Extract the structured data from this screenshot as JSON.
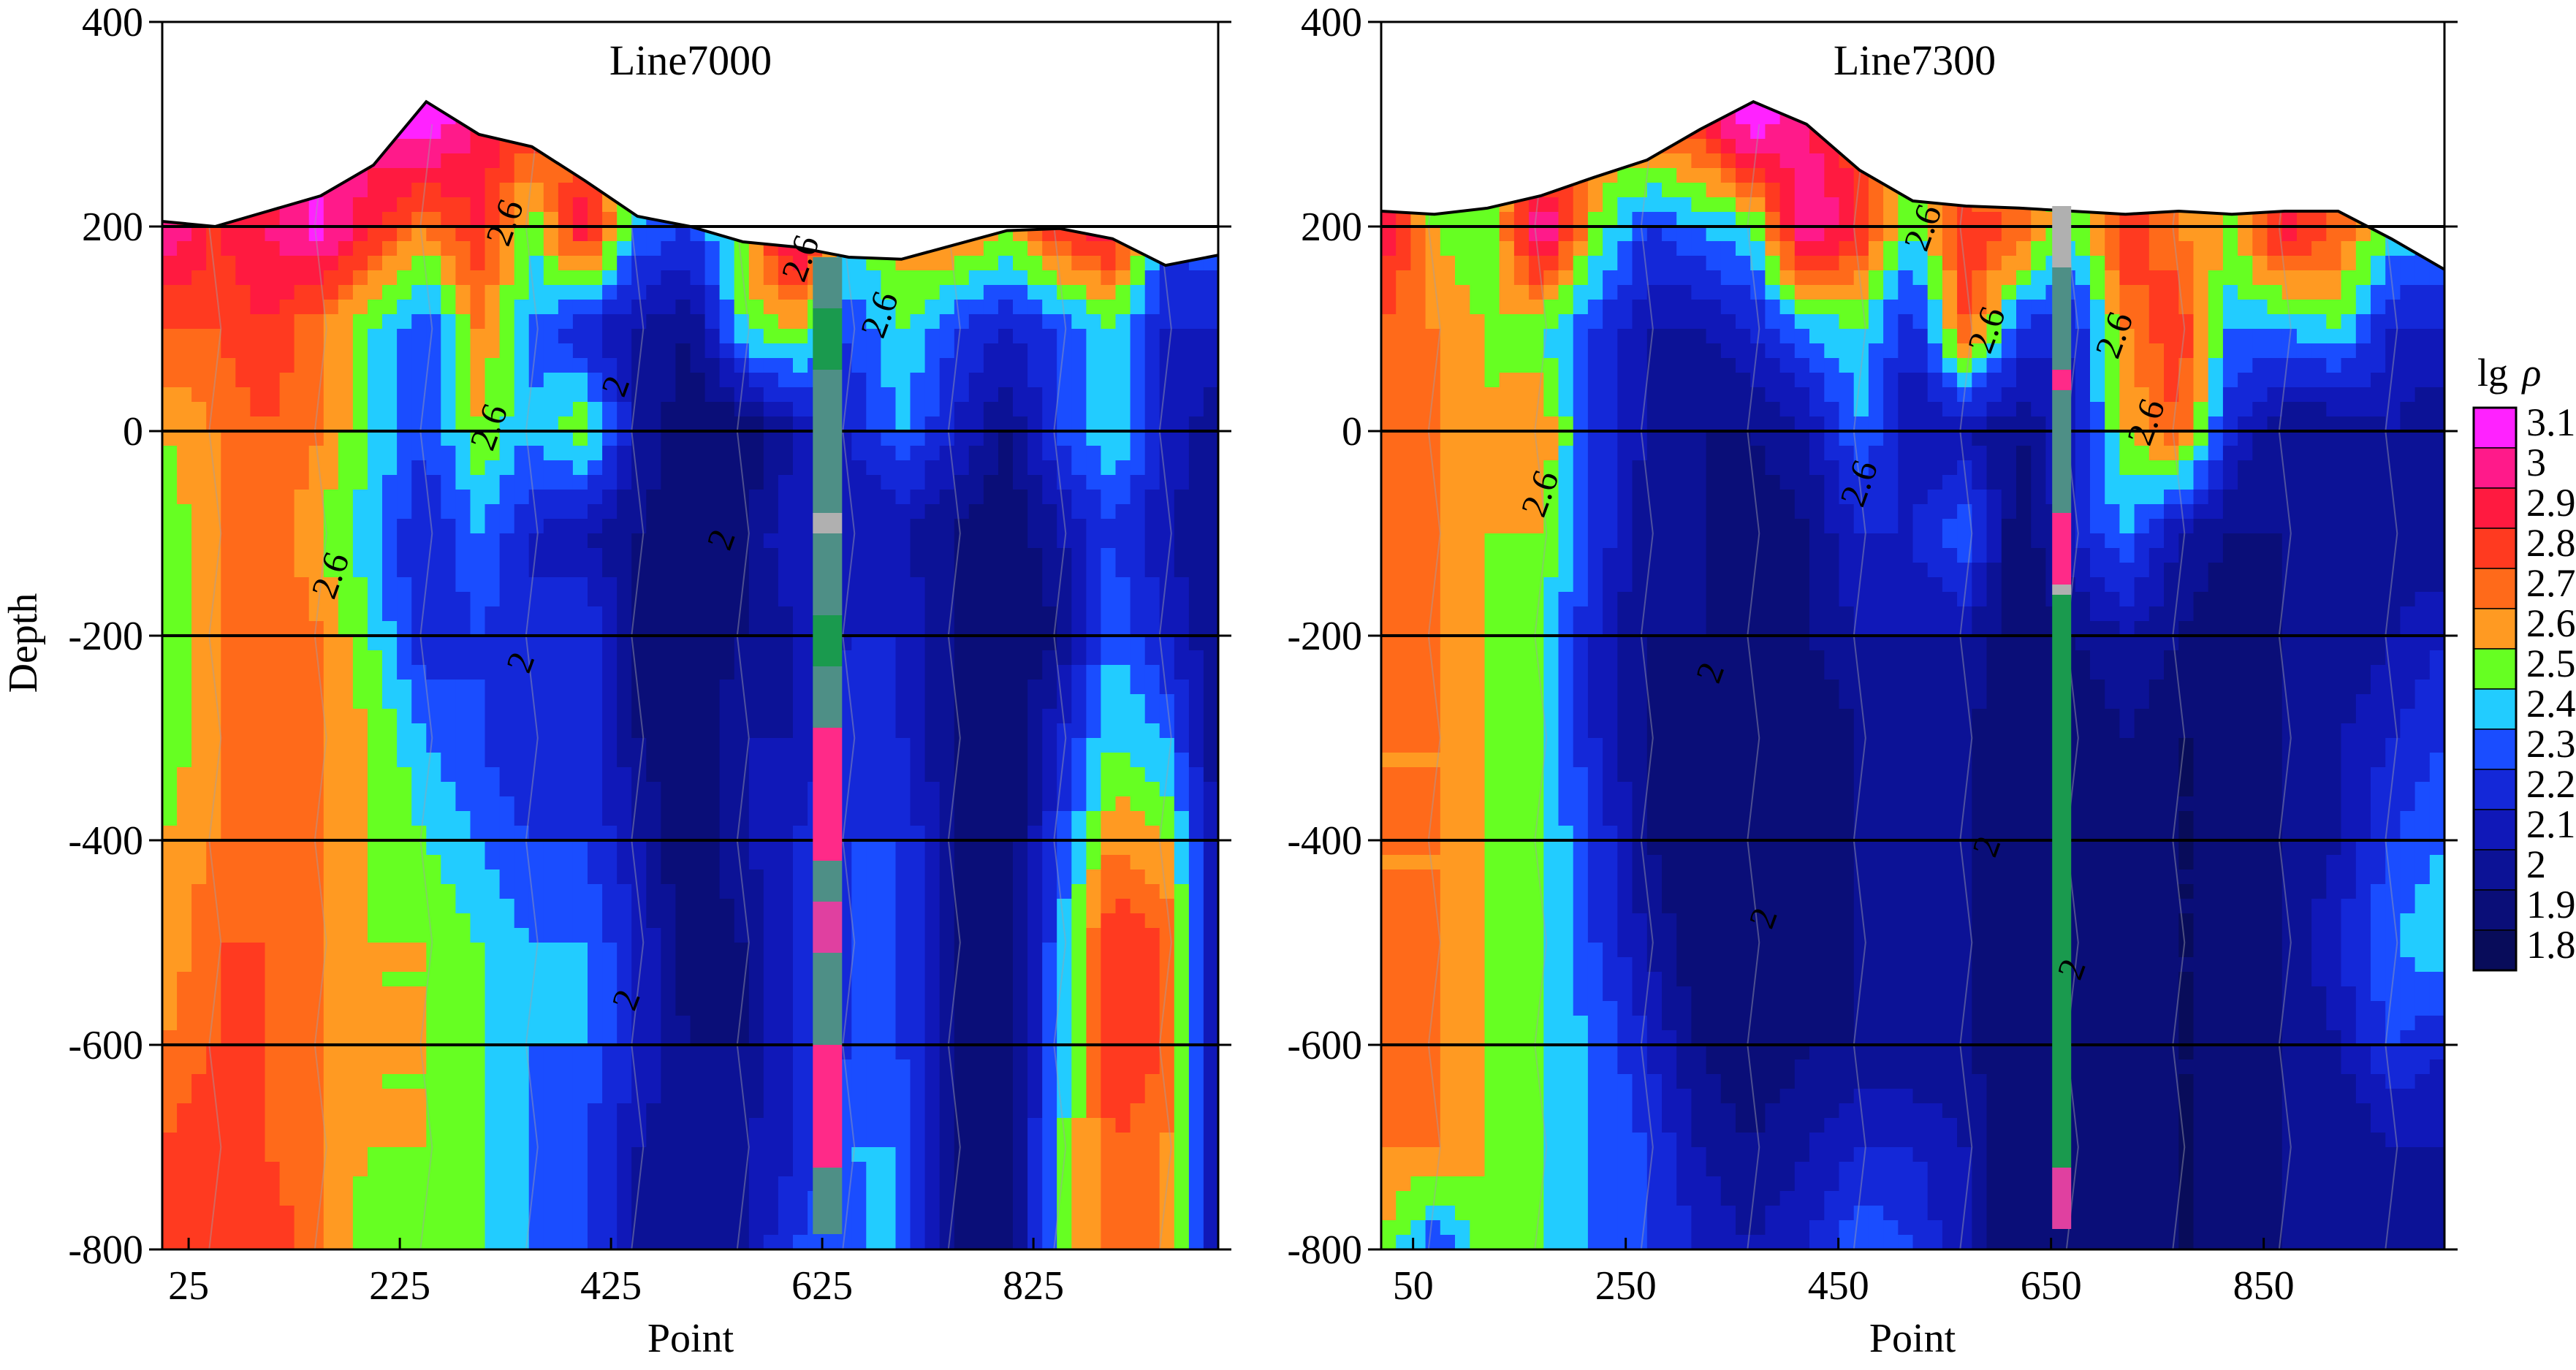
{
  "chart_data": [
    {
      "type": "heatmap",
      "title": "Line7000",
      "xlabel": "Point",
      "ylabel": "Depth",
      "xlim": [
        0,
        1000
      ],
      "ylim": [
        -800,
        400
      ],
      "x_ticks": [
        "25",
        "225",
        "425",
        "625",
        "825"
      ],
      "x_tick_values": [
        25,
        225,
        425,
        625,
        825
      ],
      "y_ticks": [
        "400",
        "200",
        "0",
        "-200",
        "-400",
        "-600",
        "-800"
      ],
      "y_tick_values": [
        400,
        200,
        0,
        -200,
        -400,
        -600,
        -800
      ],
      "grid_lines_y": [
        200,
        0,
        -200,
        -400,
        -600
      ],
      "topography": [
        [
          0,
          205
        ],
        [
          50,
          200
        ],
        [
          100,
          215
        ],
        [
          150,
          230
        ],
        [
          200,
          260
        ],
        [
          250,
          322
        ],
        [
          300,
          290
        ],
        [
          350,
          278
        ],
        [
          400,
          245
        ],
        [
          450,
          210
        ],
        [
          500,
          200
        ],
        [
          550,
          185
        ],
        [
          600,
          180
        ],
        [
          650,
          170
        ],
        [
          700,
          168
        ],
        [
          750,
          182
        ],
        [
          800,
          196
        ],
        [
          850,
          198
        ],
        [
          900,
          188
        ],
        [
          950,
          162
        ],
        [
          1000,
          172
        ]
      ],
      "borehole_x": 630,
      "borehole_depth_range": [
        -785,
        170
      ],
      "contour_labels": [
        {
          "text": "2.6",
          "x": 335,
          "y": 200
        },
        {
          "text": "2.6",
          "x": 615,
          "y": 165
        },
        {
          "text": "2.6",
          "x": 690,
          "y": 110
        },
        {
          "text": "2.6",
          "x": 320,
          "y": 0
        },
        {
          "text": "2.6",
          "x": 170,
          "y": -145
        },
        {
          "text": "2",
          "x": 440,
          "y": 40
        },
        {
          "text": "2",
          "x": 540,
          "y": -110
        },
        {
          "text": "2",
          "x": 350,
          "y": -230
        },
        {
          "text": "2",
          "x": 450,
          "y": -560
        }
      ],
      "z_grid": {
        "x": [
          0,
          50,
          100,
          150,
          200,
          250,
          300,
          350,
          400,
          450,
          500,
          550,
          600,
          650,
          700,
          750,
          800,
          850,
          900,
          950,
          1000
        ],
        "depth": [
          300,
          200,
          100,
          0,
          -100,
          -200,
          -300,
          -400,
          -500,
          -600,
          -700,
          -800
        ],
        "values": [
          [
            2.5,
            2.6,
            2.8,
            3.0,
            3.1,
            3.2,
            3.0,
            2.9,
            2.7,
            2.5,
            2.4,
            2.4,
            2.6,
            2.6,
            2.5,
            2.5,
            2.6,
            2.8,
            2.7,
            2.4,
            2.3
          ],
          [
            3.1,
            2.9,
            3.0,
            3.15,
            2.9,
            2.7,
            2.9,
            2.5,
            3.0,
            2.4,
            2.3,
            2.6,
            3.15,
            2.5,
            2.7,
            2.8,
            2.6,
            2.9,
            3.0,
            2.3,
            2.4
          ],
          [
            2.8,
            2.8,
            2.9,
            2.7,
            2.5,
            2.3,
            2.7,
            2.4,
            2.2,
            2.1,
            2.0,
            2.5,
            2.6,
            2.3,
            2.5,
            2.3,
            2.2,
            2.3,
            2.5,
            2.2,
            2.2
          ],
          [
            2.6,
            2.7,
            2.8,
            2.7,
            2.5,
            2.3,
            2.6,
            2.4,
            2.6,
            2.1,
            1.9,
            1.9,
            2.1,
            2.2,
            2.4,
            2.2,
            2.0,
            2.3,
            2.5,
            2.2,
            2.0
          ],
          [
            2.5,
            2.7,
            2.8,
            2.6,
            2.4,
            2.2,
            2.4,
            2.2,
            2.1,
            2.0,
            1.9,
            2.0,
            2.2,
            2.1,
            2.1,
            2.0,
            1.9,
            2.1,
            2.3,
            2.1,
            2.0
          ],
          [
            2.5,
            2.7,
            2.8,
            2.7,
            2.5,
            2.2,
            2.3,
            2.2,
            2.3,
            2.0,
            1.9,
            2.0,
            2.1,
            2.2,
            2.2,
            2.0,
            1.9,
            2.0,
            2.4,
            2.2,
            2.0
          ],
          [
            2.5,
            2.7,
            2.8,
            2.7,
            2.6,
            2.4,
            2.3,
            2.2,
            2.3,
            2.0,
            1.9,
            2.1,
            2.1,
            2.3,
            2.2,
            2.0,
            1.9,
            2.2,
            2.5,
            2.4,
            2.0
          ],
          [
            2.6,
            2.7,
            2.8,
            2.7,
            2.6,
            2.5,
            2.4,
            2.3,
            2.3,
            2.1,
            1.9,
            2.1,
            2.2,
            2.3,
            2.3,
            2.0,
            1.9,
            2.3,
            2.7,
            2.6,
            2.1
          ],
          [
            2.6,
            2.8,
            2.8,
            2.7,
            2.6,
            2.6,
            2.5,
            2.4,
            2.4,
            2.2,
            1.9,
            2.0,
            2.2,
            2.3,
            2.3,
            2.0,
            1.9,
            2.4,
            2.9,
            2.8,
            2.1
          ],
          [
            2.7,
            2.8,
            2.8,
            2.7,
            2.6,
            2.6,
            2.5,
            2.4,
            2.4,
            2.2,
            2.0,
            2.0,
            2.2,
            2.3,
            2.3,
            2.0,
            1.9,
            2.4,
            2.9,
            2.8,
            2.1
          ],
          [
            2.8,
            2.9,
            2.8,
            2.7,
            2.6,
            2.6,
            2.5,
            2.4,
            2.3,
            2.1,
            2.0,
            2.1,
            2.2,
            2.4,
            2.4,
            2.0,
            1.9,
            2.5,
            2.8,
            2.7,
            2.1
          ],
          [
            2.8,
            2.9,
            2.9,
            2.7,
            2.5,
            2.6,
            2.5,
            2.4,
            2.3,
            2.1,
            2.0,
            2.1,
            2.3,
            2.4,
            2.4,
            2.0,
            1.9,
            2.5,
            2.8,
            2.7,
            2.1
          ]
        ]
      }
    },
    {
      "type": "heatmap",
      "title": "Line7300",
      "xlabel": "Point",
      "ylabel": "",
      "xlim": [
        20,
        1020
      ],
      "ylim": [
        -800,
        400
      ],
      "x_ticks": [
        "50",
        "250",
        "450",
        "650",
        "850"
      ],
      "x_tick_values": [
        50,
        250,
        450,
        650,
        850
      ],
      "y_ticks": [
        "400",
        "200",
        "0",
        "-200",
        "-400",
        "-600",
        "-800"
      ],
      "y_tick_values": [
        400,
        200,
        0,
        -200,
        -400,
        -600,
        -800
      ],
      "grid_lines_y": [
        200,
        0,
        -200,
        -400,
        -600
      ],
      "topography": [
        [
          20,
          215
        ],
        [
          70,
          212
        ],
        [
          120,
          218
        ],
        [
          170,
          230
        ],
        [
          220,
          248
        ],
        [
          270,
          265
        ],
        [
          320,
          295
        ],
        [
          370,
          322
        ],
        [
          420,
          300
        ],
        [
          470,
          255
        ],
        [
          520,
          225
        ],
        [
          570,
          220
        ],
        [
          620,
          218
        ],
        [
          670,
          215
        ],
        [
          720,
          212
        ],
        [
          770,
          215
        ],
        [
          820,
          212
        ],
        [
          870,
          215
        ],
        [
          920,
          215
        ],
        [
          970,
          188
        ],
        [
          1020,
          158
        ]
      ],
      "borehole_x": 660,
      "borehole_depth_range": [
        -780,
        220
      ],
      "contour_labels": [
        {
          "text": "2.6",
          "x": 540,
          "y": 195
        },
        {
          "text": "2.6",
          "x": 600,
          "y": 95
        },
        {
          "text": "2.6",
          "x": 720,
          "y": 90
        },
        {
          "text": "2.6",
          "x": 750,
          "y": 5
        },
        {
          "text": "2.6",
          "x": 180,
          "y": -65
        },
        {
          "text": "2.6",
          "x": 480,
          "y": -55
        },
        {
          "text": "2",
          "x": 340,
          "y": -240
        },
        {
          "text": "2",
          "x": 390,
          "y": -480
        },
        {
          "text": "2",
          "x": 600,
          "y": -410
        },
        {
          "text": "2",
          "x": 680,
          "y": -530
        }
      ],
      "z_grid": {
        "x": [
          20,
          70,
          120,
          170,
          220,
          270,
          320,
          370,
          420,
          470,
          520,
          570,
          620,
          670,
          720,
          770,
          820,
          870,
          920,
          970,
          1020
        ],
        "depth": [
          300,
          200,
          100,
          0,
          -100,
          -200,
          -300,
          -400,
          -500,
          -600,
          -700,
          -800
        ],
        "values": [
          [
            2.4,
            2.4,
            2.5,
            2.6,
            2.7,
            2.8,
            2.9,
            3.2,
            3.0,
            2.8,
            2.6,
            2.5,
            2.5,
            2.5,
            2.5,
            2.5,
            2.5,
            2.5,
            2.5,
            2.4,
            2.3
          ],
          [
            3.0,
            2.6,
            2.5,
            3.15,
            2.6,
            2.3,
            2.4,
            2.5,
            3.15,
            2.9,
            2.5,
            2.9,
            2.8,
            2.5,
            2.9,
            2.7,
            2.6,
            3.0,
            2.8,
            2.5,
            2.4
          ],
          [
            2.8,
            2.7,
            2.6,
            2.5,
            2.3,
            2.1,
            2.1,
            2.2,
            2.4,
            2.5,
            2.2,
            2.8,
            2.3,
            2.2,
            2.7,
            2.9,
            2.4,
            2.4,
            2.5,
            2.2,
            2.2
          ],
          [
            2.7,
            2.7,
            2.6,
            2.7,
            2.3,
            2.1,
            2.0,
            2.0,
            2.1,
            2.4,
            2.1,
            2.1,
            2.0,
            2.2,
            2.6,
            2.8,
            2.2,
            2.0,
            2.0,
            2.1,
            2.0
          ],
          [
            2.7,
            2.7,
            2.6,
            2.6,
            2.3,
            2.0,
            2.0,
            1.9,
            2.0,
            2.2,
            2.2,
            2.4,
            1.9,
            2.2,
            2.4,
            2.1,
            2.0,
            2.0,
            2.0,
            2.0,
            2.0
          ],
          [
            2.7,
            2.7,
            2.6,
            2.5,
            2.2,
            2.0,
            2.0,
            1.9,
            2.0,
            2.1,
            2.1,
            2.1,
            1.9,
            2.0,
            2.1,
            2.0,
            1.9,
            2.0,
            2.0,
            2.1,
            2.2
          ],
          [
            2.7,
            2.7,
            2.6,
            2.5,
            2.2,
            2.0,
            1.9,
            1.9,
            1.9,
            2.0,
            2.0,
            2.0,
            1.9,
            1.9,
            2.0,
            1.9,
            1.9,
            2.0,
            2.1,
            2.2,
            2.3
          ],
          [
            2.7,
            2.7,
            2.6,
            2.5,
            2.3,
            2.0,
            1.9,
            1.9,
            1.9,
            2.0,
            2.0,
            2.0,
            1.9,
            1.9,
            1.9,
            1.9,
            1.9,
            2.0,
            2.1,
            2.3,
            2.4
          ],
          [
            2.7,
            2.7,
            2.6,
            2.5,
            2.3,
            2.1,
            1.9,
            1.9,
            1.9,
            2.0,
            2.0,
            2.0,
            1.9,
            1.9,
            1.9,
            1.9,
            1.9,
            2.0,
            2.2,
            2.4,
            2.5
          ],
          [
            2.7,
            2.7,
            2.6,
            2.5,
            2.4,
            2.2,
            2.0,
            1.9,
            2.0,
            2.0,
            2.0,
            2.0,
            1.9,
            1.9,
            1.9,
            1.9,
            1.9,
            2.0,
            2.1,
            2.3,
            2.2
          ],
          [
            2.7,
            2.7,
            2.6,
            2.5,
            2.4,
            2.3,
            2.1,
            2.0,
            2.1,
            2.2,
            2.2,
            2.1,
            1.9,
            1.9,
            1.9,
            1.9,
            1.9,
            2.0,
            2.0,
            2.1,
            2.1
          ],
          [
            2.6,
            2.3,
            2.6,
            2.5,
            2.4,
            2.3,
            2.2,
            2.1,
            2.2,
            2.4,
            2.3,
            2.1,
            1.9,
            1.9,
            1.9,
            1.9,
            1.9,
            2.0,
            2.0,
            2.0,
            2.1
          ]
        ]
      }
    }
  ],
  "legend": {
    "title_main": "lg",
    "title_symbol": "ρ",
    "levels": [
      "3.1",
      "3",
      "2.9",
      "2.8",
      "2.7",
      "2.6",
      "2.5",
      "2.4",
      "2.3",
      "2.2",
      "2.1",
      "2",
      "1.9",
      "1.8"
    ],
    "colors": [
      "#ff22ff",
      "#ff1a8a",
      "#ff1a40",
      "#ff3a20",
      "#ff6a1a",
      "#ff9a22",
      "#66ff22",
      "#22ccff",
      "#1a4dff",
      "#1428d8",
      "#1018b8",
      "#0c1296",
      "#0a0e78",
      "#080c5a"
    ]
  },
  "borehole_colors": [
    "#4e8f86",
    "#1a9a4e",
    "#cc3399",
    "#b0b0b0",
    "#ff2a88",
    "#e040a0"
  ]
}
